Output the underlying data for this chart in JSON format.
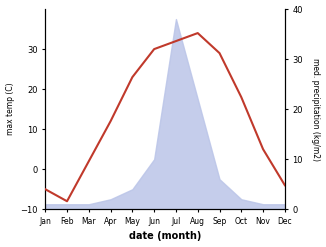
{
  "months": [
    "Jan",
    "Feb",
    "Mar",
    "Apr",
    "May",
    "Jun",
    "Jul",
    "Aug",
    "Sep",
    "Oct",
    "Nov",
    "Dec"
  ],
  "month_indices": [
    1,
    2,
    3,
    4,
    5,
    6,
    7,
    8,
    9,
    10,
    11,
    12
  ],
  "temp": [
    -5,
    -8,
    2,
    12,
    23,
    30,
    32,
    34,
    29,
    18,
    5,
    -4
  ],
  "precip": [
    1,
    1,
    1,
    2,
    4,
    10,
    38,
    22,
    6,
    2,
    1,
    1
  ],
  "temp_color": "#c0392b",
  "precip_fill_color": "#bbc5e8",
  "ylim_temp": [
    -10,
    40
  ],
  "ylim_precip": [
    0,
    40
  ],
  "ylabel_left": "max temp (C)",
  "ylabel_right": "med. precipitation (kg/m2)",
  "xlabel": "date (month)",
  "yticks_left": [
    -10,
    0,
    10,
    20,
    30
  ],
  "yticks_right": [
    0,
    10,
    20,
    30,
    40
  ],
  "bg_color": "#ffffff",
  "plot_bg_color": "#ffffff",
  "line_width": 1.5
}
